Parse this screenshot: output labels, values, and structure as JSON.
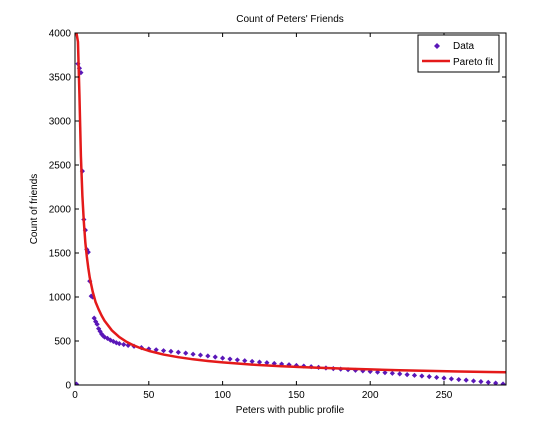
{
  "chart_data": {
    "type": "scatter",
    "title": "Count of Peters' Friends",
    "xlabel": "Peters with public profile",
    "ylabel": "Count of friends",
    "xlim": [
      0,
      292
    ],
    "ylim": [
      0,
      4000
    ],
    "xticks": [
      0,
      50,
      100,
      150,
      200,
      250
    ],
    "yticks": [
      0,
      500,
      1000,
      1500,
      2000,
      2500,
      3000,
      3500,
      4000
    ],
    "grid": false,
    "legend_position": "top-right",
    "series": [
      {
        "name": "Data",
        "kind": "markers",
        "color": "#5a17b8",
        "marker": "diamond",
        "points": [
          [
            1,
            10
          ],
          [
            2,
            3650
          ],
          [
            3,
            3600
          ],
          [
            4,
            3550
          ],
          [
            5,
            2430
          ],
          [
            6,
            1880
          ],
          [
            7,
            1760
          ],
          [
            8,
            1540
          ],
          [
            9,
            1510
          ],
          [
            10,
            1180
          ],
          [
            11,
            1010
          ],
          [
            12,
            1000
          ],
          [
            13,
            760
          ],
          [
            14,
            720
          ],
          [
            15,
            690
          ],
          [
            16,
            640
          ],
          [
            17,
            610
          ],
          [
            18,
            580
          ],
          [
            19,
            560
          ],
          [
            20,
            545
          ],
          [
            22,
            530
          ],
          [
            24,
            510
          ],
          [
            26,
            495
          ],
          [
            28,
            480
          ],
          [
            30,
            470
          ],
          [
            33,
            460
          ],
          [
            36,
            450
          ],
          [
            40,
            440
          ],
          [
            45,
            425
          ],
          [
            50,
            410
          ],
          [
            55,
            400
          ],
          [
            60,
            390
          ],
          [
            65,
            382
          ],
          [
            70,
            372
          ],
          [
            75,
            362
          ],
          [
            80,
            350
          ],
          [
            85,
            340
          ],
          [
            90,
            330
          ],
          [
            95,
            318
          ],
          [
            100,
            305
          ],
          [
            105,
            295
          ],
          [
            110,
            285
          ],
          [
            115,
            276
          ],
          [
            120,
            268
          ],
          [
            125,
            260
          ],
          [
            130,
            253
          ],
          [
            135,
            245
          ],
          [
            140,
            238
          ],
          [
            145,
            230
          ],
          [
            150,
            222
          ],
          [
            155,
            215
          ],
          [
            160,
            208
          ],
          [
            165,
            200
          ],
          [
            170,
            193
          ],
          [
            175,
            186
          ],
          [
            180,
            180
          ],
          [
            185,
            174
          ],
          [
            190,
            167
          ],
          [
            195,
            160
          ],
          [
            200,
            153
          ],
          [
            205,
            146
          ],
          [
            210,
            140
          ],
          [
            215,
            133
          ],
          [
            220,
            126
          ],
          [
            225,
            118
          ],
          [
            230,
            110
          ],
          [
            235,
            102
          ],
          [
            240,
            95
          ],
          [
            245,
            86
          ],
          [
            250,
            78
          ],
          [
            255,
            70
          ],
          [
            260,
            62
          ],
          [
            265,
            55
          ],
          [
            270,
            46
          ],
          [
            275,
            38
          ],
          [
            280,
            30
          ],
          [
            285,
            22
          ],
          [
            290,
            12
          ]
        ]
      },
      {
        "name": "Pareto fit",
        "kind": "line",
        "color": "#e41a1a",
        "points": [
          [
            1,
            4000
          ],
          [
            2,
            3900
          ],
          [
            3,
            3300
          ],
          [
            4,
            2600
          ],
          [
            5,
            2150
          ],
          [
            6,
            1850
          ],
          [
            7,
            1620
          ],
          [
            8,
            1460
          ],
          [
            9,
            1330
          ],
          [
            10,
            1220
          ],
          [
            12,
            1060
          ],
          [
            14,
            940
          ],
          [
            16,
            860
          ],
          [
            18,
            790
          ],
          [
            20,
            730
          ],
          [
            25,
            620
          ],
          [
            30,
            545
          ],
          [
            35,
            490
          ],
          [
            40,
            448
          ],
          [
            45,
            415
          ],
          [
            50,
            388
          ],
          [
            60,
            346
          ],
          [
            70,
            316
          ],
          [
            80,
            292
          ],
          [
            90,
            273
          ],
          [
            100,
            257
          ],
          [
            120,
            232
          ],
          [
            140,
            213
          ],
          [
            160,
            199
          ],
          [
            180,
            187
          ],
          [
            200,
            177
          ],
          [
            220,
            168
          ],
          [
            240,
            161
          ],
          [
            260,
            154
          ],
          [
            280,
            148
          ],
          [
            292,
            145
          ]
        ]
      }
    ]
  }
}
